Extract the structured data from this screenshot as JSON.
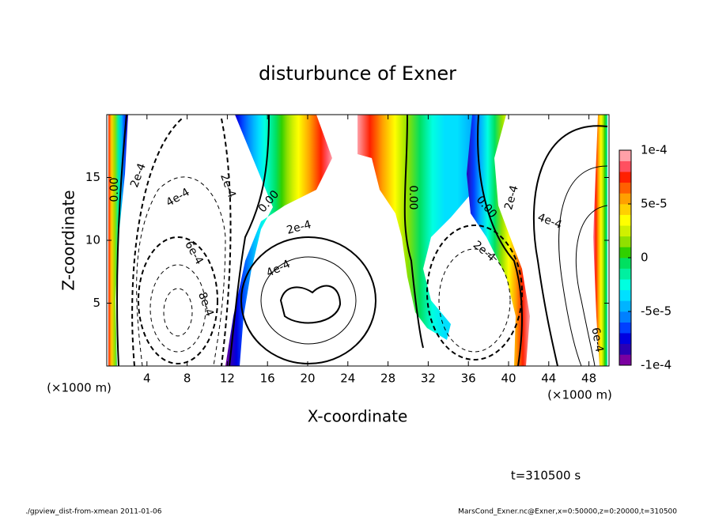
{
  "chart_data": {
    "type": "contour",
    "title": "disturbunce of Exner",
    "x_label": "X-coordinate",
    "y_label": "Z-coordinate",
    "x_unit": "(×1000 m)",
    "y_unit": "(×1000 m)",
    "xlim": [
      0,
      50
    ],
    "xticks": [
      4,
      8,
      12,
      16,
      20,
      24,
      28,
      32,
      36,
      40,
      44,
      48
    ],
    "ylim": [
      0,
      20
    ],
    "yticks": [
      5,
      10,
      15
    ],
    "colorbar": {
      "lim": [
        -0.0001,
        0.0001
      ],
      "ticks": [
        {
          "value": 0.0001,
          "label": "1e-4"
        },
        {
          "value": 5e-05,
          "label": "5e-5"
        },
        0,
        {
          "value": -5e-05,
          "label": "-5e-5"
        },
        {
          "value": -0.0001,
          "label": "-1e-4"
        }
      ],
      "colors": [
        "#7a00a0",
        "#2a00b4",
        "#0000e0",
        "#0040ff",
        "#0080ff",
        "#00b4ff",
        "#00e0ff",
        "#00ffe0",
        "#00f0a0",
        "#00e060",
        "#30d000",
        "#90e000",
        "#d0f000",
        "#ffff00",
        "#ffd000",
        "#ffa000",
        "#ff6000",
        "#ff2000",
        "#ff5060",
        "#ffa0a8"
      ]
    },
    "contour_labels": [
      "0.00",
      "2e-4",
      "2e-4",
      "4e-4",
      "6e-4",
      "8e-4",
      "0.00",
      "2e-4",
      "4e-4",
      "0.00",
      "2e-4",
      "0.00",
      "2e-4",
      "4e-4",
      "6e-4"
    ],
    "time_label": "t=310500 s",
    "footer_left": "./gpview_dist-from-xmean  2011-01-06",
    "footer_right": "MarsCond_Exner.nc@Exner,x=0:50000,z=0:20000,t=310500"
  }
}
